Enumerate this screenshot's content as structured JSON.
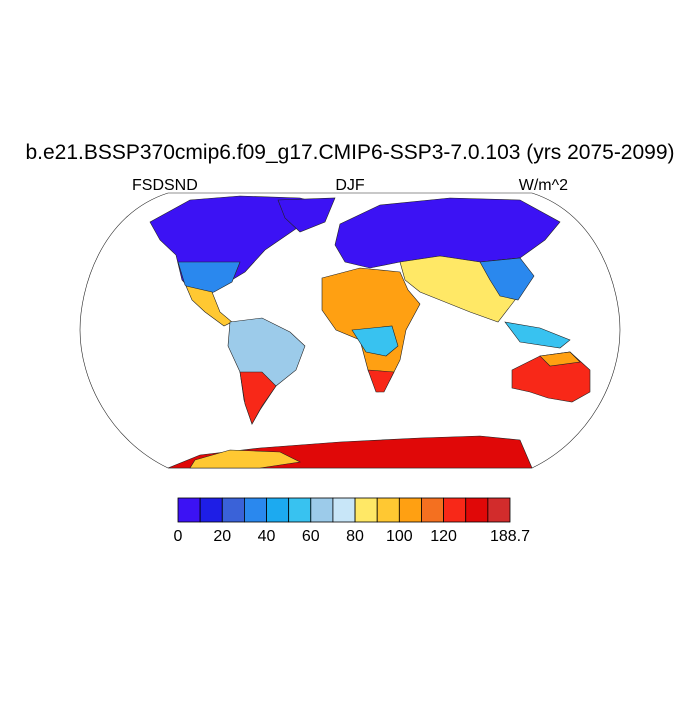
{
  "title": "b.e21.BSSP370cmip6.f09_g17.CMIP6-SSP3-7.0.103 (yrs 2075-2099)",
  "left_label": "FSDSND",
  "center_label": "DJF",
  "right_label": "W/m^2",
  "colorbar": {
    "colors": [
      "#3c12f4",
      "#1e1ee6",
      "#3a62d8",
      "#2a88ee",
      "#1caaf0",
      "#38c2f0",
      "#9ccbea",
      "#c8e6f8",
      "#ffe866",
      "#ffc832",
      "#ffa012",
      "#f47020",
      "#f82818",
      "#e00808",
      "#d22c2c"
    ],
    "ticks": [
      0,
      20,
      40,
      60,
      80,
      100,
      120,
      188.7
    ]
  }
}
